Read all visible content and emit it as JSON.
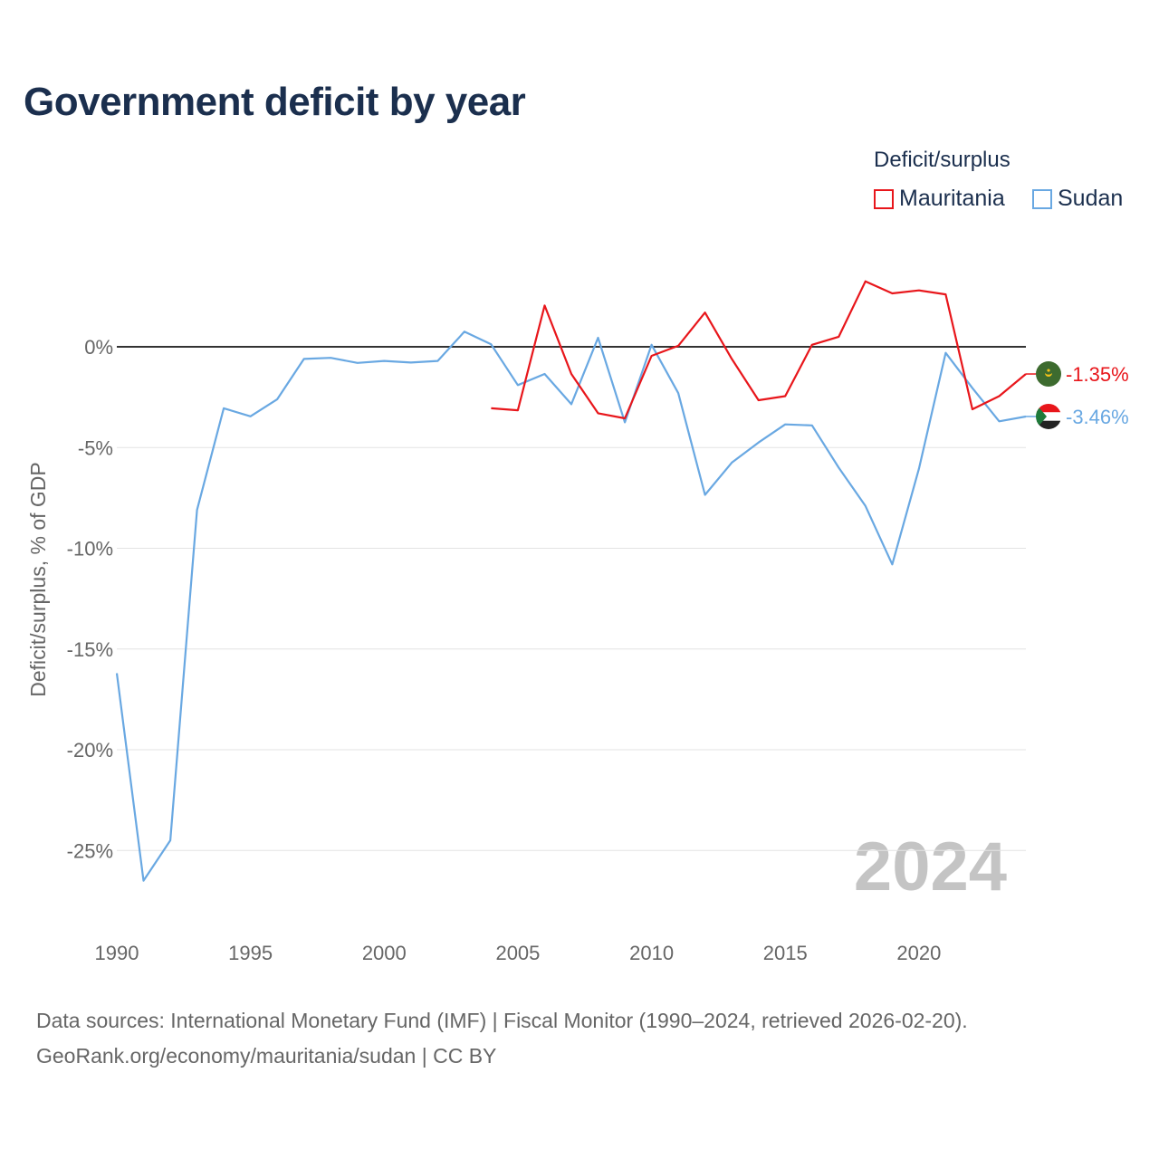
{
  "title": "Government deficit by year",
  "legend": {
    "title": "Deficit/surplus",
    "items": [
      {
        "name": "Mauritania",
        "color": "#e8161b"
      },
      {
        "name": "Sudan",
        "color": "#69a8e2"
      }
    ]
  },
  "sources": {
    "line1": "Data sources: International Monetary Fund (IMF) | Fiscal Monitor (1990–2024, retrieved 2026-02-20).",
    "line2": "GeoRank.org/economy/mauritania/sudan | CC BY"
  },
  "chart_data": {
    "type": "line",
    "title": "Government deficit by year",
    "xlabel": "",
    "ylabel": "Deficit/surplus, % of GDP",
    "xlim": [
      1990,
      2024
    ],
    "ylim": [
      -28,
      3.5
    ],
    "x_ticks": [
      1990,
      1995,
      2000,
      2005,
      2010,
      2015,
      2020
    ],
    "y_ticks": [
      0,
      -5,
      -10,
      -15,
      -20,
      -25
    ],
    "y_tick_labels": [
      "0%",
      "-5%",
      "-10%",
      "-15%",
      "-20%",
      "-25%"
    ],
    "current_year": "2024",
    "series": [
      {
        "name": "Mauritania",
        "color": "#e8161b",
        "end_label": "-1.35%",
        "x": [
          2004,
          2005,
          2006,
          2007,
          2008,
          2009,
          2010,
          2011,
          2012,
          2013,
          2014,
          2015,
          2016,
          2017,
          2018,
          2019,
          2020,
          2021,
          2022,
          2023,
          2024
        ],
        "values": [
          -3.05,
          -3.15,
          2.05,
          -1.35,
          -3.3,
          -3.55,
          -0.45,
          0.05,
          1.7,
          -0.6,
          -2.65,
          -2.45,
          0.1,
          0.5,
          3.25,
          2.65,
          2.8,
          2.6,
          -3.1,
          -2.45,
          -1.35
        ]
      },
      {
        "name": "Sudan",
        "color": "#69a8e2",
        "end_label": "-3.46%",
        "x": [
          1990,
          1991,
          1992,
          1993,
          1994,
          1995,
          1996,
          1997,
          1998,
          1999,
          2000,
          2001,
          2002,
          2003,
          2004,
          2005,
          2006,
          2007,
          2008,
          2009,
          2010,
          2011,
          2012,
          2013,
          2014,
          2015,
          2016,
          2017,
          2018,
          2019,
          2020,
          2021,
          2022,
          2023,
          2024
        ],
        "values": [
          -16.2,
          -26.5,
          -24.5,
          -8.1,
          -3.05,
          -3.45,
          -2.6,
          -0.6,
          -0.55,
          -0.8,
          -0.7,
          -0.78,
          -0.7,
          0.75,
          0.12,
          -1.9,
          -1.35,
          -2.85,
          0.45,
          -3.75,
          0.1,
          -2.3,
          -7.35,
          -5.75,
          -4.75,
          -3.85,
          -3.9,
          -6.0,
          -7.9,
          -10.8,
          -6.05,
          -0.3,
          -2.05,
          -3.7,
          -3.46
        ]
      }
    ]
  }
}
